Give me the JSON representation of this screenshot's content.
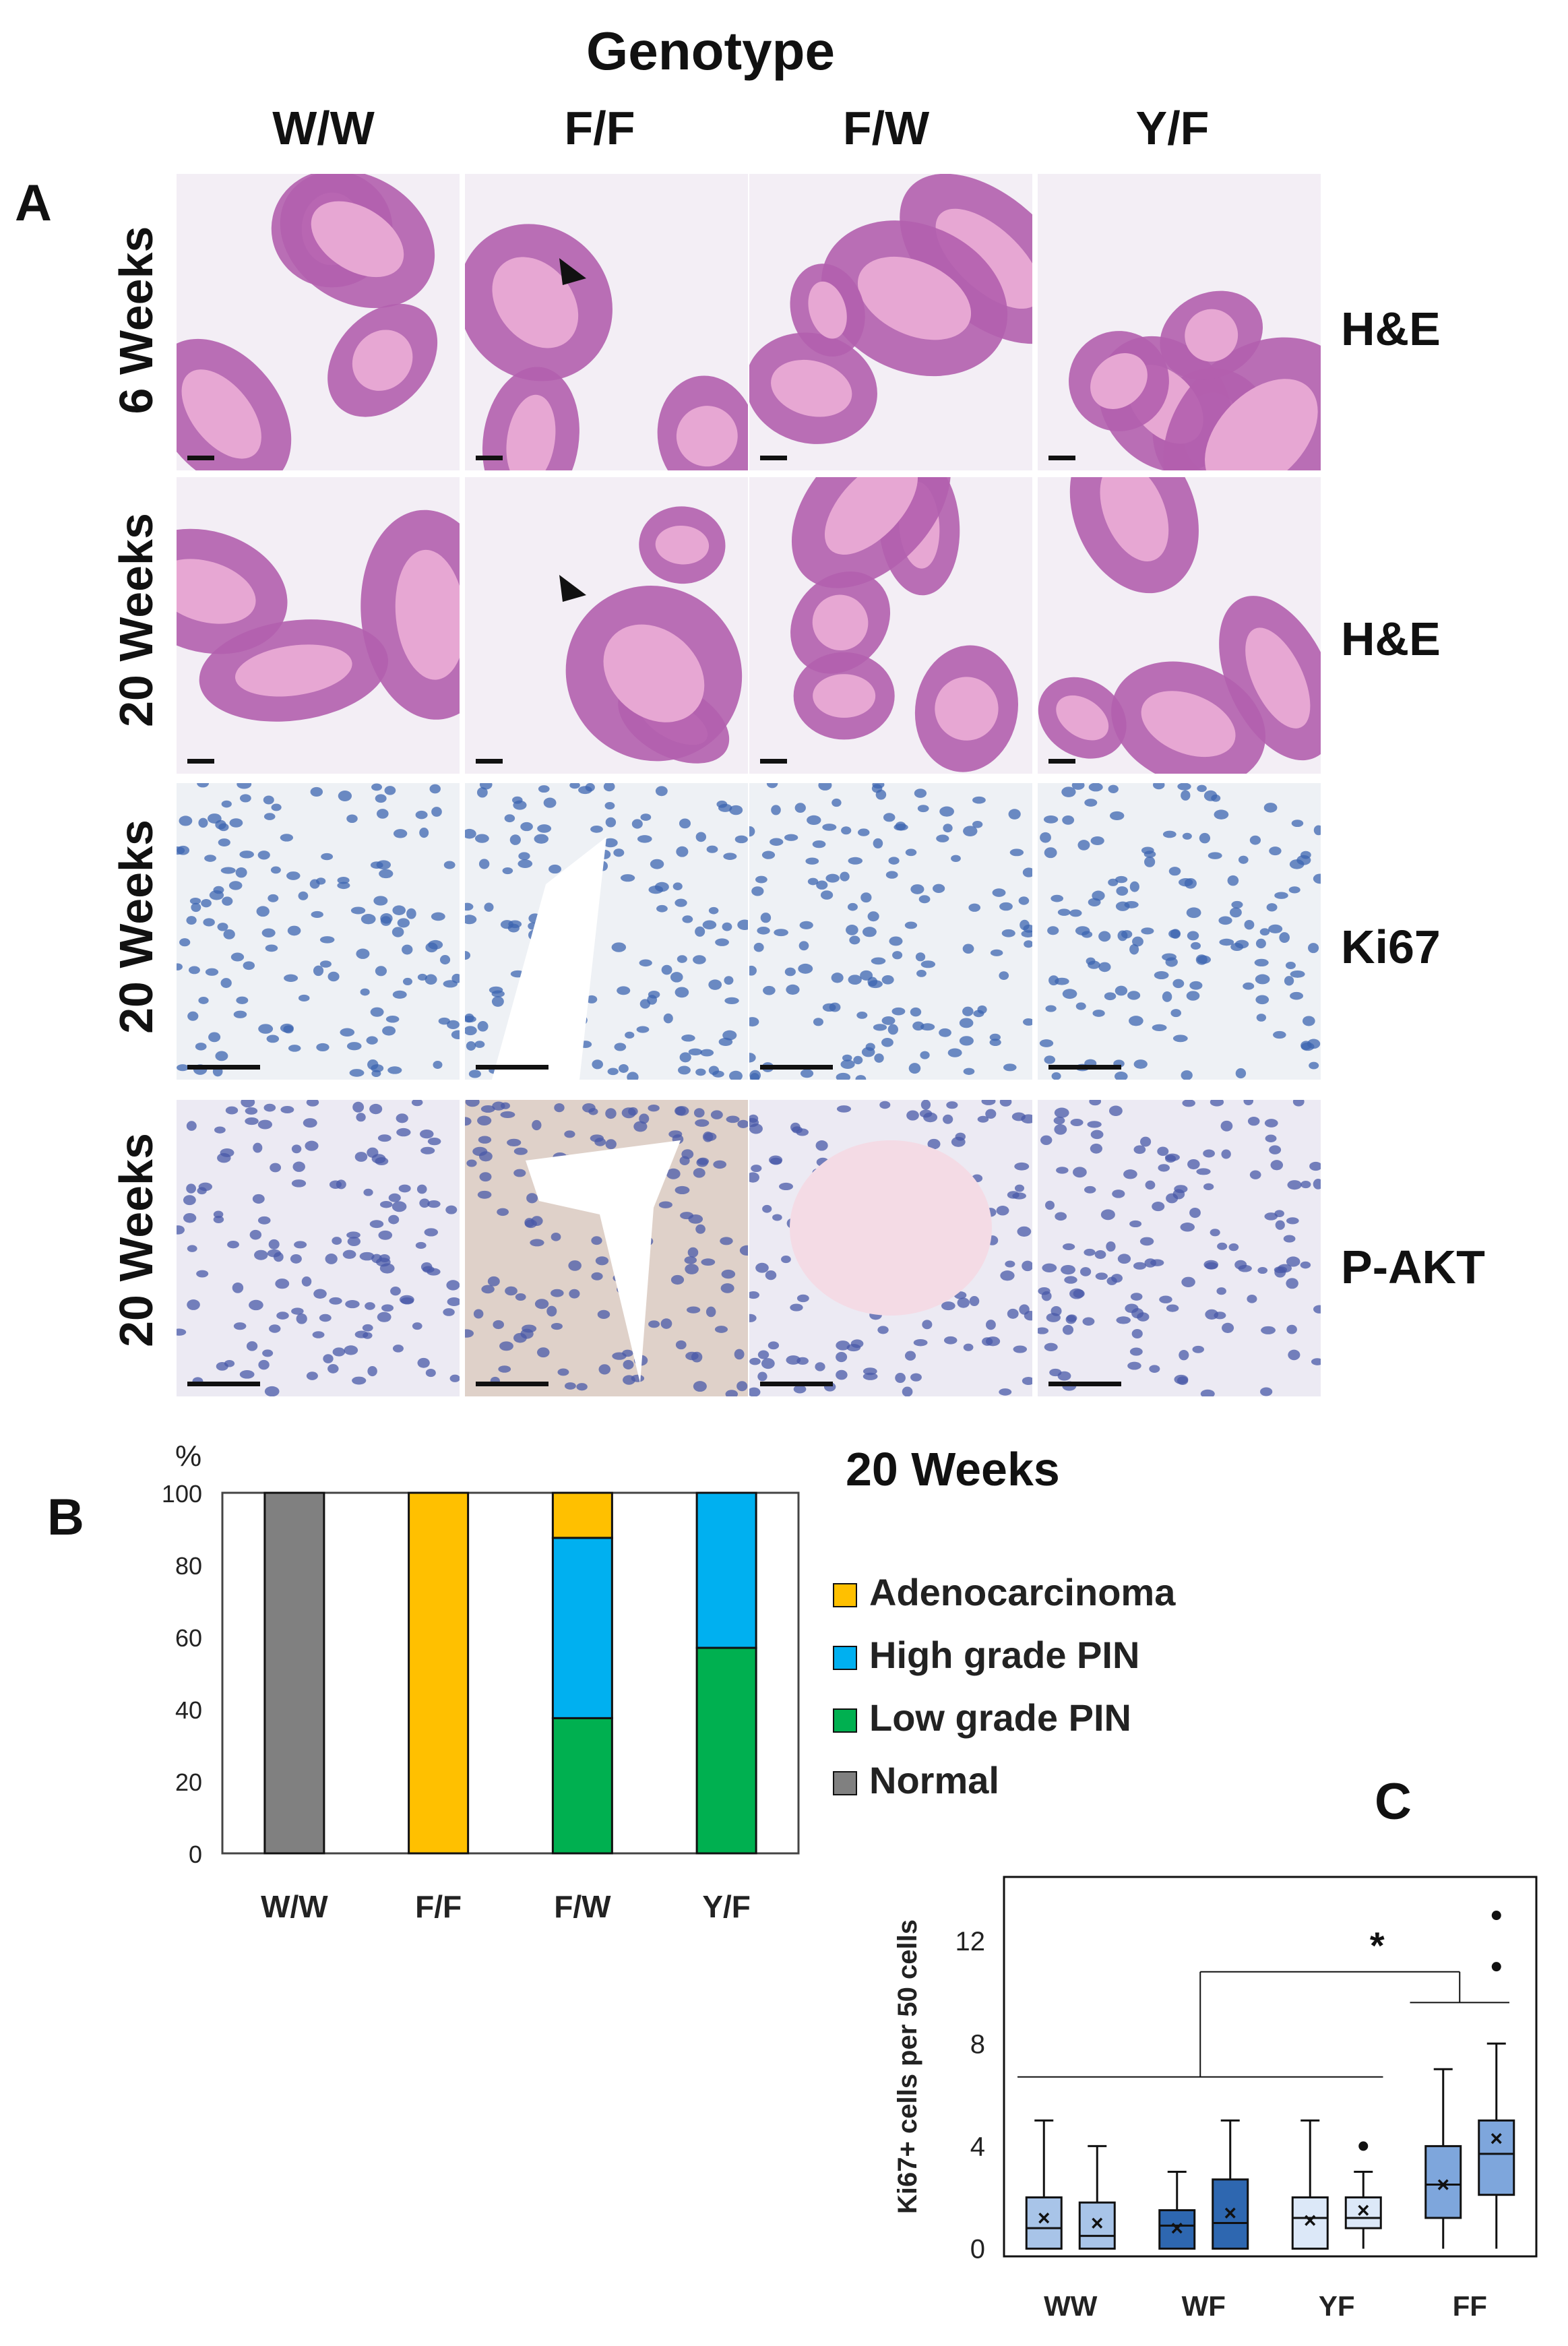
{
  "figure": {
    "panelA": {
      "letter": "A",
      "super_header": "Genotype",
      "columns": [
        "W/W",
        "F/F",
        "F/W",
        "Y/F"
      ],
      "rows": [
        {
          "time": "6 Weeks",
          "stain": "H&E"
        },
        {
          "time": "20 Weeks",
          "stain": "H&E"
        },
        {
          "time": "20 Weeks",
          "stain": "Ki67"
        },
        {
          "time": "20 Weeks",
          "stain": "P-AKT"
        }
      ],
      "colors": {
        "he_background": "#f3eef5",
        "he_tissue": "#b25fae",
        "he_lumen": "#e7a7d3",
        "ki67_background": "#eef1f5",
        "ki67_nuclei": "#3e66b0",
        "pakt_background": "#eceaf3",
        "pakt_nuclei": "#4a5aa8",
        "pakt_positive": "#c9a27c"
      }
    },
    "panelB": {
      "letter": "B",
      "title": "20 Weeks"
    },
    "panelC": {
      "letter": "C"
    }
  },
  "chart_data": [
    {
      "type": "bar",
      "subtype": "stacked",
      "title": "20 Weeks",
      "ylabel": "%",
      "ylim": [
        0,
        100
      ],
      "yticks": [
        0,
        20,
        40,
        60,
        80,
        100
      ],
      "categories": [
        "W/W",
        "F/F",
        "F/W",
        "Y/F"
      ],
      "series": [
        {
          "name": "Normal",
          "color": "#808080",
          "values": [
            100,
            0,
            0,
            0
          ]
        },
        {
          "name": "Low grade PIN",
          "color": "#00b050",
          "values": [
            0,
            0,
            37.5,
            57
          ]
        },
        {
          "name": "High grade PIN",
          "color": "#00b0f0",
          "values": [
            0,
            0,
            50,
            43
          ]
        },
        {
          "name": "Adenocarcinoma",
          "color": "#ffc000",
          "values": [
            0,
            100,
            12.5,
            0
          ]
        }
      ],
      "legend_order": [
        "Adenocarcinoma",
        "High grade PIN",
        "Low grade PIN",
        "Normal"
      ],
      "legend": "right"
    },
    {
      "type": "box",
      "ylabel": "Ki67+ cells per 50 cells",
      "ylim": [
        -0.3,
        14.5
      ],
      "yticks": [
        0,
        4,
        8,
        12
      ],
      "categories": [
        "WW",
        "WF",
        "YF",
        "FF"
      ],
      "significance": "*",
      "boxes": [
        {
          "group": "WW",
          "color": "#a8c4e8",
          "min": 0,
          "q1": 0,
          "median": 0.8,
          "q3": 2,
          "max": 5,
          "mean": 1.2,
          "outliers": []
        },
        {
          "group": "WW",
          "color": "#a8c4e8",
          "min": 0,
          "q1": 0,
          "median": 0.5,
          "q3": 1.8,
          "max": 4,
          "mean": 1.0,
          "outliers": []
        },
        {
          "group": "WF",
          "color": "#2e67b0",
          "min": 0,
          "q1": 0,
          "median": 0.9,
          "q3": 1.5,
          "max": 3,
          "mean": 0.8,
          "outliers": []
        },
        {
          "group": "WF",
          "color": "#2e67b0",
          "min": 0,
          "q1": 0,
          "median": 1.0,
          "q3": 2.7,
          "max": 5,
          "mean": 1.4,
          "outliers": []
        },
        {
          "group": "YF",
          "color": "#dce8f8",
          "min": 0,
          "q1": 0,
          "median": 1.2,
          "q3": 2,
          "max": 5,
          "mean": 1.1,
          "outliers": []
        },
        {
          "group": "YF",
          "color": "#dce8f8",
          "min": 0,
          "q1": 0.8,
          "median": 1.2,
          "q3": 2,
          "max": 3,
          "mean": 1.5,
          "outliers": [
            4
          ]
        },
        {
          "group": "FF",
          "color": "#7ea6dc",
          "min": 0,
          "q1": 1.2,
          "median": 2.5,
          "q3": 4,
          "max": 7,
          "mean": 2.5,
          "outliers": []
        },
        {
          "group": "FF",
          "color": "#7ea6dc",
          "min": 0,
          "q1": 2.1,
          "median": 3.7,
          "q3": 5,
          "max": 8,
          "mean": 4.3,
          "outliers": [
            11,
            13
          ]
        }
      ]
    }
  ]
}
